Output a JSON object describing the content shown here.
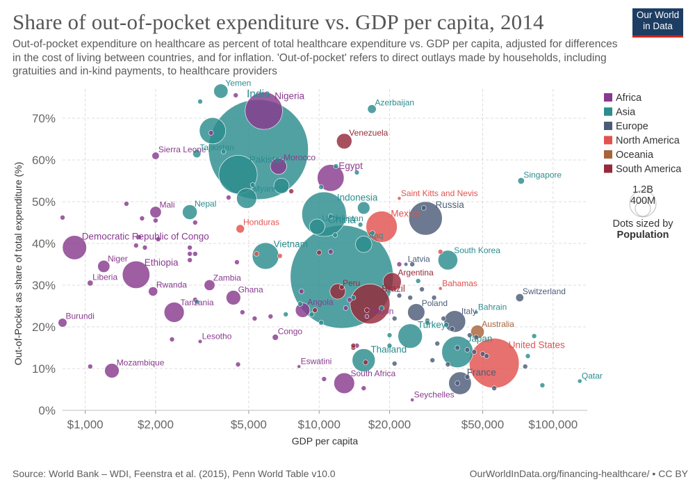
{
  "header": {
    "title": "Share of out-of-pocket expenditure vs. GDP per capita, 2014",
    "subtitle": "Out-of-pocket expenditure on healthcare as percent of total healthcare expenditure vs. GDP per capita, adjusted for differences in the cost of living between countries, and for inflation. 'Out-of-pocket' refers to direct outlays made by households, including gratuities and in-kind payments, to healthcare providers",
    "logo_line1": "Our World",
    "logo_line2": "in Data"
  },
  "footer": {
    "source": "Source: World Bank – WDI, Feenstra et al. (2015), Penn World Table v10.0",
    "url": "OurWorldInData.org/financing-healthcare/ • CC BY"
  },
  "chart_data": {
    "type": "scatter",
    "title": "Share of out-of-pocket expenditure vs. GDP per capita, 2014",
    "xlabel": "GDP per capita",
    "ylabel": "Out-of-Pocket as share of total expenditure (%)",
    "xscale": "log",
    "xlim": [
      800,
      140000
    ],
    "ylim": [
      0,
      77
    ],
    "x_ticks": [
      1000,
      2000,
      5000,
      10000,
      20000,
      50000,
      100000
    ],
    "x_tick_labels": [
      "$1,000",
      "$2,000",
      "$5,000",
      "$10,000",
      "$20,000",
      "$50,000",
      "$100,000"
    ],
    "y_ticks": [
      0,
      10,
      20,
      30,
      40,
      50,
      60,
      70
    ],
    "y_tick_labels": [
      "0%",
      "10%",
      "20%",
      "30%",
      "40%",
      "50%",
      "60%",
      "70%"
    ],
    "grid": true,
    "legend_position": "right",
    "size_legend": {
      "title_line1": "Dots sized by",
      "title_line2": "Population",
      "large": "1.2B",
      "small": "400M"
    },
    "regions": [
      {
        "name": "Africa",
        "color": "#883a8e"
      },
      {
        "name": "Asia",
        "color": "#2c8c8e"
      },
      {
        "name": "Europe",
        "color": "#4c5c78"
      },
      {
        "name": "North America",
        "color": "#e2524e"
      },
      {
        "name": "Oceania",
        "color": "#a8643a"
      },
      {
        "name": "South America",
        "color": "#962a3a"
      }
    ],
    "labeled_points": [
      {
        "name": "Yemen",
        "region": "Asia",
        "gdp": 3800,
        "oop": 76.5,
        "pop": 26
      },
      {
        "name": "Nigeria",
        "region": "Africa",
        "gdp": 5800,
        "oop": 71.8,
        "pop": 180
      },
      {
        "name": "Azerbaijan",
        "region": "Asia",
        "gdp": 16800,
        "oop": 72.2,
        "pop": 9.5
      },
      {
        "name": "India",
        "region": "Asia",
        "gdp": 5500,
        "oop": 62.5,
        "pop": 1290
      },
      {
        "name": "Venezuela",
        "region": "South America",
        "gdp": 12800,
        "oop": 64.5,
        "pop": 30
      },
      {
        "name": "Sierra Leone",
        "region": "Africa",
        "gdp": 2000,
        "oop": 61.0,
        "pop": 7
      },
      {
        "name": "Tajikistan",
        "region": "Asia",
        "gdp": 3000,
        "oop": 61.5,
        "pop": 8.3
      },
      {
        "name": "Pakistan",
        "region": "Asia",
        "gdp": 4500,
        "oop": 56.5,
        "pop": 190
      },
      {
        "name": "Morocco",
        "region": "Africa",
        "gdp": 6700,
        "oop": 58.5,
        "pop": 34
      },
      {
        "name": "Egypt",
        "region": "Africa",
        "gdp": 11200,
        "oop": 55.7,
        "pop": 92
      },
      {
        "name": "Singapore",
        "region": "Asia",
        "gdp": 73000,
        "oop": 55.0,
        "pop": 5.5
      },
      {
        "name": "Myanmar",
        "region": "Asia",
        "gdp": 4900,
        "oop": 50.8,
        "pop": 52
      },
      {
        "name": "Saint Kitts and Nevis",
        "region": "North America",
        "gdp": 22000,
        "oop": 50.8,
        "pop": 0.05
      },
      {
        "name": "Mali",
        "region": "Africa",
        "gdp": 2000,
        "oop": 47.5,
        "pop": 17
      },
      {
        "name": "Nepal",
        "region": "Asia",
        "gdp": 2800,
        "oop": 47.5,
        "pop": 28
      },
      {
        "name": "Indonesia",
        "region": "Asia",
        "gdp": 10500,
        "oop": 47.0,
        "pop": 255
      },
      {
        "name": "Russia",
        "region": "Europe",
        "gdp": 28500,
        "oop": 46.0,
        "pop": 144
      },
      {
        "name": "Uzbekistan",
        "region": "Asia",
        "gdp": 9800,
        "oop": 44.0,
        "pop": 31
      },
      {
        "name": "Honduras",
        "region": "North America",
        "gdp": 4600,
        "oop": 43.5,
        "pop": 9
      },
      {
        "name": "Mexico",
        "region": "North America",
        "gdp": 18500,
        "oop": 44.0,
        "pop": 125
      },
      {
        "name": "Iraq",
        "region": "Asia",
        "gdp": 15500,
        "oop": 39.8,
        "pop": 35
      },
      {
        "name": "Democratic Republic of Congo",
        "region": "Africa",
        "gdp": 900,
        "oop": 39.0,
        "pop": 75
      },
      {
        "name": "Vietnam",
        "region": "Asia",
        "gdp": 5900,
        "oop": 37.0,
        "pop": 91
      },
      {
        "name": "China",
        "region": "Asia",
        "gdp": 12500,
        "oop": 32.0,
        "pop": 1370
      },
      {
        "name": "Latvia",
        "region": "Europe",
        "gdp": 23500,
        "oop": 35.0,
        "pop": 2
      },
      {
        "name": "South Korea",
        "region": "Asia",
        "gdp": 35500,
        "oop": 36.0,
        "pop": 50
      },
      {
        "name": "Niger",
        "region": "Africa",
        "gdp": 1200,
        "oop": 34.5,
        "pop": 19
      },
      {
        "name": "Ethiopia",
        "region": "Africa",
        "gdp": 1650,
        "oop": 32.5,
        "pop": 97
      },
      {
        "name": "Liberia",
        "region": "Africa",
        "gdp": 1050,
        "oop": 30.5,
        "pop": 4.5
      },
      {
        "name": "Zambia",
        "region": "Africa",
        "gdp": 3400,
        "oop": 30.0,
        "pop": 15
      },
      {
        "name": "Rwanda",
        "region": "Africa",
        "gdp": 1950,
        "oop": 28.5,
        "pop": 11
      },
      {
        "name": "Argentina",
        "region": "South America",
        "gdp": 20500,
        "oop": 30.8,
        "pop": 43
      },
      {
        "name": "Peru",
        "region": "South America",
        "gdp": 12000,
        "oop": 28.5,
        "pop": 31
      },
      {
        "name": "Bahamas",
        "region": "North America",
        "gdp": 33000,
        "oop": 29.2,
        "pop": 0.38
      },
      {
        "name": "Switzerland",
        "region": "Europe",
        "gdp": 72000,
        "oop": 27.0,
        "pop": 8.2
      },
      {
        "name": "Ghana",
        "region": "Africa",
        "gdp": 4300,
        "oop": 27.0,
        "pop": 27
      },
      {
        "name": "Brazil",
        "region": "South America",
        "gdp": 16500,
        "oop": 25.5,
        "pop": 204
      },
      {
        "name": "Angola",
        "region": "Africa",
        "gdp": 8500,
        "oop": 24.0,
        "pop": 27
      },
      {
        "name": "Poland",
        "region": "Europe",
        "gdp": 26000,
        "oop": 23.5,
        "pop": 38
      },
      {
        "name": "Bahrain",
        "region": "Asia",
        "gdp": 47000,
        "oop": 23.5,
        "pop": 1.4
      },
      {
        "name": "Tanzania",
        "region": "Africa",
        "gdp": 2400,
        "oop": 23.5,
        "pop": 52
      },
      {
        "name": "Gabon",
        "region": "Africa",
        "gdp": 16000,
        "oop": 22.5,
        "pop": 1.9
      },
      {
        "name": "Burundi",
        "region": "Africa",
        "gdp": 800,
        "oop": 21.0,
        "pop": 10
      },
      {
        "name": "Italy",
        "region": "Europe",
        "gdp": 38000,
        "oop": 21.3,
        "pop": 60
      },
      {
        "name": "Australia",
        "region": "Oceania",
        "gdp": 47500,
        "oop": 18.8,
        "pop": 23.5
      },
      {
        "name": "Turkey",
        "region": "Asia",
        "gdp": 24500,
        "oop": 17.8,
        "pop": 77
      },
      {
        "name": "Congo",
        "region": "Africa",
        "gdp": 6500,
        "oop": 17.5,
        "pop": 4.8
      },
      {
        "name": "Lesotho",
        "region": "Africa",
        "gdp": 3100,
        "oop": 16.5,
        "pop": 2.1
      },
      {
        "name": "Japan",
        "region": "Asia",
        "gdp": 39000,
        "oop": 14.0,
        "pop": 127
      },
      {
        "name": "United States",
        "region": "North America",
        "gdp": 56000,
        "oop": 11.3,
        "pop": 320
      },
      {
        "name": "Thailand",
        "region": "Asia",
        "gdp": 15500,
        "oop": 12.0,
        "pop": 68
      },
      {
        "name": "Mozambique",
        "region": "Africa",
        "gdp": 1300,
        "oop": 9.5,
        "pop": 27
      },
      {
        "name": "Eswatini",
        "region": "Africa",
        "gdp": 8200,
        "oop": 10.5,
        "pop": 1.1
      },
      {
        "name": "Qatar",
        "region": "Asia",
        "gdp": 130000,
        "oop": 7.0,
        "pop": 2.4
      },
      {
        "name": "South Africa",
        "region": "Africa",
        "gdp": 12800,
        "oop": 6.5,
        "pop": 55
      },
      {
        "name": "France",
        "region": "Europe",
        "gdp": 40000,
        "oop": 6.5,
        "pop": 66
      },
      {
        "name": "Seychelles",
        "region": "Africa",
        "gdp": 25000,
        "oop": 2.5,
        "pop": 0.09
      }
    ],
    "unlabeled_points": [
      {
        "region": "Asia",
        "gdp": 3100,
        "oop": 74.0,
        "pop": 3
      },
      {
        "region": "Africa",
        "gdp": 4400,
        "oop": 75.5,
        "pop": 3
      },
      {
        "region": "Asia",
        "gdp": 3500,
        "oop": 67.0,
        "pop": 89
      },
      {
        "region": "Africa",
        "gdp": 3450,
        "oop": 66.5,
        "pop": 3
      },
      {
        "region": "Asia",
        "gdp": 3900,
        "oop": 62.0,
        "pop": 3
      },
      {
        "region": "Asia",
        "gdp": 11800,
        "oop": 58.5,
        "pop": 3
      },
      {
        "region": "Asia",
        "gdp": 14500,
        "oop": 57.0,
        "pop": 3
      },
      {
        "region": "Asia",
        "gdp": 6900,
        "oop": 53.8,
        "pop": 30
      },
      {
        "region": "South America",
        "gdp": 7600,
        "oop": 52.5,
        "pop": 3
      },
      {
        "region": "Asia",
        "gdp": 5200,
        "oop": 54.0,
        "pop": 3
      },
      {
        "region": "Asia",
        "gdp": 10200,
        "oop": 53.5,
        "pop": 3
      },
      {
        "region": "Africa",
        "gdp": 4100,
        "oop": 51.0,
        "pop": 3
      },
      {
        "region": "Africa",
        "gdp": 1500,
        "oop": 49.5,
        "pop": 3
      },
      {
        "region": "Africa",
        "gdp": 800,
        "oop": 46.2,
        "pop": 3
      },
      {
        "region": "Africa",
        "gdp": 1750,
        "oop": 46.0,
        "pop": 3
      },
      {
        "region": "Africa",
        "gdp": 2000,
        "oop": 45.5,
        "pop": 3
      },
      {
        "region": "Africa",
        "gdp": 2950,
        "oop": 45.0,
        "pop": 3
      },
      {
        "region": "Asia",
        "gdp": 11200,
        "oop": 46.5,
        "pop": 3
      },
      {
        "region": "Asia",
        "gdp": 15500,
        "oop": 48.5,
        "pop": 20
      },
      {
        "region": "Asia",
        "gdp": 16900,
        "oop": 42.5,
        "pop": 3
      },
      {
        "region": "Africa",
        "gdp": 1700,
        "oop": 41.5,
        "pop": 3
      },
      {
        "region": "Africa",
        "gdp": 2050,
        "oop": 41.0,
        "pop": 3
      },
      {
        "region": "Africa",
        "gdp": 1650,
        "oop": 39.5,
        "pop": 3
      },
      {
        "region": "Africa",
        "gdp": 1800,
        "oop": 39.0,
        "pop": 3
      },
      {
        "region": "Africa",
        "gdp": 2800,
        "oop": 39.0,
        "pop": 3
      },
      {
        "region": "Africa",
        "gdp": 2800,
        "oop": 37.5,
        "pop": 3
      },
      {
        "region": "Africa",
        "gdp": 2950,
        "oop": 37.5,
        "pop": 3
      },
      {
        "region": "Africa",
        "gdp": 2800,
        "oop": 36.0,
        "pop": 3
      },
      {
        "region": "Africa",
        "gdp": 4450,
        "oop": 35.5,
        "pop": 3
      },
      {
        "region": "North America",
        "gdp": 5400,
        "oop": 37.5,
        "pop": 3
      },
      {
        "region": "North America",
        "gdp": 6800,
        "oop": 37.0,
        "pop": 3
      },
      {
        "region": "South America",
        "gdp": 10000,
        "oop": 37.8,
        "pop": 3
      },
      {
        "region": "Africa",
        "gdp": 11200,
        "oop": 38.0,
        "pop": 3
      },
      {
        "region": "Asia",
        "gdp": 11700,
        "oop": 42.0,
        "pop": 3
      },
      {
        "region": "Asia",
        "gdp": 15000,
        "oop": 44.5,
        "pop": 3
      },
      {
        "region": "Africa",
        "gdp": 22000,
        "oop": 35.0,
        "pop": 3
      },
      {
        "region": "Europe",
        "gdp": 25000,
        "oop": 35.0,
        "pop": 3
      },
      {
        "region": "Europe",
        "gdp": 28000,
        "oop": 48.5,
        "pop": 3
      },
      {
        "region": "North America",
        "gdp": 33000,
        "oop": 38.0,
        "pop": 3
      },
      {
        "region": "Asia",
        "gdp": 26500,
        "oop": 31.0,
        "pop": 3
      },
      {
        "region": "Europe",
        "gdp": 27500,
        "oop": 29.0,
        "pop": 3
      },
      {
        "region": "Europe",
        "gdp": 24500,
        "oop": 27.0,
        "pop": 3
      },
      {
        "region": "Europe",
        "gdp": 31000,
        "oop": 27.0,
        "pop": 3
      },
      {
        "region": "Europe",
        "gdp": 22000,
        "oop": 27.5,
        "pop": 3
      },
      {
        "region": "Africa",
        "gdp": 2950,
        "oop": 26.5,
        "pop": 3
      },
      {
        "region": "Asia",
        "gdp": 3000,
        "oop": 26.0,
        "pop": 3
      },
      {
        "region": "Africa",
        "gdp": 8400,
        "oop": 28.5,
        "pop": 3
      },
      {
        "region": "South America",
        "gdp": 12500,
        "oop": 29.5,
        "pop": 3
      },
      {
        "region": "Asia",
        "gdp": 14000,
        "oop": 27.0,
        "pop": 3
      },
      {
        "region": "Africa",
        "gdp": 13500,
        "oop": 26.5,
        "pop": 3
      },
      {
        "region": "Africa",
        "gdp": 13000,
        "oop": 24.5,
        "pop": 3
      },
      {
        "region": "South America",
        "gdp": 16000,
        "oop": 24.0,
        "pop": 3
      },
      {
        "region": "Asia",
        "gdp": 18500,
        "oop": 24.5,
        "pop": 3
      },
      {
        "region": "Asia",
        "gdp": 8300,
        "oop": 25.5,
        "pop": 3
      },
      {
        "region": "South America",
        "gdp": 9600,
        "oop": 24.0,
        "pop": 3
      },
      {
        "region": "Asia",
        "gdp": 9300,
        "oop": 23.0,
        "pop": 3
      },
      {
        "region": "Africa",
        "gdp": 4700,
        "oop": 23.5,
        "pop": 3
      },
      {
        "region": "Africa",
        "gdp": 5300,
        "oop": 22.0,
        "pop": 3
      },
      {
        "region": "Africa",
        "gdp": 6200,
        "oop": 22.5,
        "pop": 3
      },
      {
        "region": "Asia",
        "gdp": 7200,
        "oop": 23.0,
        "pop": 3
      },
      {
        "region": "Asia",
        "gdp": 10200,
        "oop": 21.0,
        "pop": 3
      },
      {
        "region": "Europe",
        "gdp": 21000,
        "oop": 22.0,
        "pop": 3
      },
      {
        "region": "Europe",
        "gdp": 29000,
        "oop": 21.5,
        "pop": 3
      },
      {
        "region": "Europe",
        "gdp": 34000,
        "oop": 22.0,
        "pop": 3
      },
      {
        "region": "Asia",
        "gdp": 35000,
        "oop": 20.5,
        "pop": 3
      },
      {
        "region": "Europe",
        "gdp": 37000,
        "oop": 19.5,
        "pop": 3
      },
      {
        "region": "Europe",
        "gdp": 44000,
        "oop": 18.0,
        "pop": 3
      },
      {
        "region": "Europe",
        "gdp": 47000,
        "oop": 17.5,
        "pop": 3
      },
      {
        "region": "Asia",
        "gdp": 83000,
        "oop": 17.8,
        "pop": 3
      },
      {
        "region": "Asia",
        "gdp": 20000,
        "oop": 18.0,
        "pop": 3
      },
      {
        "region": "Asia",
        "gdp": 29000,
        "oop": 21.0,
        "pop": 3
      },
      {
        "region": "Africa",
        "gdp": 2350,
        "oop": 17.0,
        "pop": 3
      },
      {
        "region": "Europe",
        "gdp": 32000,
        "oop": 16.0,
        "pop": 3
      },
      {
        "region": "Europe",
        "gdp": 39000,
        "oop": 15.0,
        "pop": 3
      },
      {
        "region": "Europe",
        "gdp": 43000,
        "oop": 14.5,
        "pop": 3
      },
      {
        "region": "Europe",
        "gdp": 46000,
        "oop": 14.0,
        "pop": 3
      },
      {
        "region": "Europe",
        "gdp": 50000,
        "oop": 13.5,
        "pop": 3
      },
      {
        "region": "Europe",
        "gdp": 52000,
        "oop": 13.0,
        "pop": 3
      },
      {
        "region": "Europe",
        "gdp": 30500,
        "oop": 12.0,
        "pop": 3
      },
      {
        "region": "Europe",
        "gdp": 35500,
        "oop": 11.0,
        "pop": 3
      },
      {
        "region": "Europe",
        "gdp": 21000,
        "oop": 11.2,
        "pop": 3
      },
      {
        "region": "Asia",
        "gdp": 20000,
        "oop": 15.5,
        "pop": 3
      },
      {
        "region": "Asia",
        "gdp": 78000,
        "oop": 13.0,
        "pop": 3
      },
      {
        "region": "Europe",
        "gdp": 76000,
        "oop": 10.5,
        "pop": 3
      },
      {
        "region": "Africa",
        "gdp": 14500,
        "oop": 15.5,
        "pop": 3
      },
      {
        "region": "South America",
        "gdp": 14000,
        "oop": 15.0,
        "pop": 3
      },
      {
        "region": "Africa",
        "gdp": 1050,
        "oop": 10.5,
        "pop": 3
      },
      {
        "region": "Africa",
        "gdp": 4500,
        "oop": 11.0,
        "pop": 3
      },
      {
        "region": "Africa",
        "gdp": 10500,
        "oop": 7.5,
        "pop": 3
      },
      {
        "region": "Europe",
        "gdp": 43000,
        "oop": 8.0,
        "pop": 3
      },
      {
        "region": "Europe",
        "gdp": 39000,
        "oop": 6.5,
        "pop": 3
      },
      {
        "region": "Europe",
        "gdp": 56000,
        "oop": 5.3,
        "pop": 3
      },
      {
        "region": "Africa",
        "gdp": 15500,
        "oop": 5.3,
        "pop": 3
      },
      {
        "region": "Asia",
        "gdp": 90000,
        "oop": 6.0,
        "pop": 3
      },
      {
        "region": "South America",
        "gdp": 14000,
        "oop": 15.5,
        "pop": 3
      },
      {
        "region": "South America",
        "gdp": 15800,
        "oop": 11.5,
        "pop": 3
      }
    ]
  }
}
